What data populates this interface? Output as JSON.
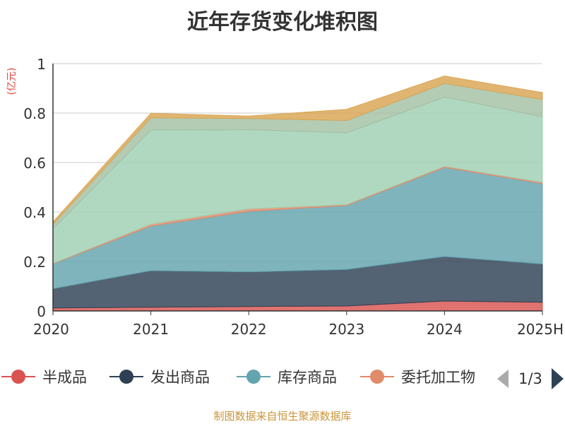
{
  "chart_data": {
    "type": "area",
    "stacked": true,
    "title": "近年存货变化堆积图",
    "ylabel": "(亿元)",
    "x": [
      "2020",
      "2021",
      "2022",
      "2023",
      "2024",
      "2025H"
    ],
    "ylim": [
      0,
      1
    ],
    "yticks": [
      "0",
      "0.2",
      "0.4",
      "0.6",
      "0.8",
      "1"
    ],
    "grid": true,
    "legend_position": "bottom",
    "legend_page": "1/3",
    "series": [
      {
        "name": "半成品",
        "color": "#d9534f",
        "values": [
          0.012,
          0.015,
          0.018,
          0.02,
          0.04,
          0.035
        ]
      },
      {
        "name": "发出商品",
        "color": "#2e4154",
        "values": [
          0.078,
          0.148,
          0.14,
          0.148,
          0.18,
          0.155
        ]
      },
      {
        "name": "库存商品",
        "color": "#63a4ae",
        "values": [
          0.1,
          0.18,
          0.245,
          0.258,
          0.36,
          0.325
        ]
      },
      {
        "name": "委托加工物资",
        "color": "#e08b6a",
        "values": [
          0.002,
          0.008,
          0.01,
          0.004,
          0.005,
          0.005
        ]
      },
      {
        "series_color_only": true,
        "color": "#9fd0b2",
        "values": [
          0.14,
          0.38,
          0.32,
          0.29,
          0.28,
          0.265
        ]
      },
      {
        "series_color_only": true,
        "color": "#a3bfa4",
        "values": [
          0.018,
          0.05,
          0.045,
          0.05,
          0.055,
          0.07
        ]
      },
      {
        "series_color_only": true,
        "color": "#d9a552",
        "values": [
          0.01,
          0.018,
          0.01,
          0.045,
          0.03,
          0.028
        ]
      }
    ]
  },
  "legend_items": [
    {
      "name": "半成品",
      "color": "#d9534f"
    },
    {
      "name": "发出商品",
      "color": "#2e4154"
    },
    {
      "name": "库存商品",
      "color": "#63a4ae"
    },
    {
      "name": "委托加工物",
      "color": "#e08b6a"
    }
  ],
  "pager": {
    "text": "1/3",
    "inactive_color": "#aaaaaa",
    "active_color": "#2e4154"
  },
  "footer": "制图数据来自恒生聚源数据库"
}
